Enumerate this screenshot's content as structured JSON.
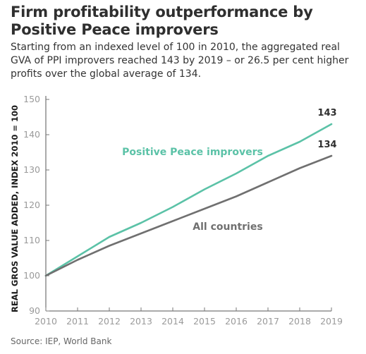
{
  "header": {
    "title": "Firm profitability outperformance by Positive Peace improvers",
    "subtitle": "Starting from an indexed level of 100 in 2010, the aggregated real GVA of PPI improvers reached 143 by 2019 – or 26.5 per cent higher profits over the global average of 134."
  },
  "footer": {
    "source": "Source: IEP, World Bank"
  },
  "chart_data": {
    "type": "line",
    "title": "Firm profitability outperformance by Positive Peace improvers",
    "xlabel": "",
    "ylabel": "REAL GROS VALUE ADDED, INDEX 2010 = 100",
    "x": [
      2010,
      2011,
      2012,
      2013,
      2014,
      2015,
      2016,
      2017,
      2018,
      2019
    ],
    "xlim": [
      2010,
      2019
    ],
    "ylim": [
      90,
      150
    ],
    "yticks": [
      90,
      100,
      110,
      120,
      130,
      140,
      150
    ],
    "grid": false,
    "series": [
      {
        "name": "Positive Peace improvers",
        "color": "#5bc2a7",
        "values": [
          100,
          105.5,
          111,
          115,
          119.5,
          124.5,
          129,
          134,
          138,
          143
        ],
        "end_label": "143"
      },
      {
        "name": "All countries",
        "color": "#707070",
        "values": [
          100,
          104.5,
          108.5,
          112,
          115.5,
          119,
          122.5,
          126.5,
          130.5,
          134
        ],
        "end_label": "134"
      }
    ]
  }
}
